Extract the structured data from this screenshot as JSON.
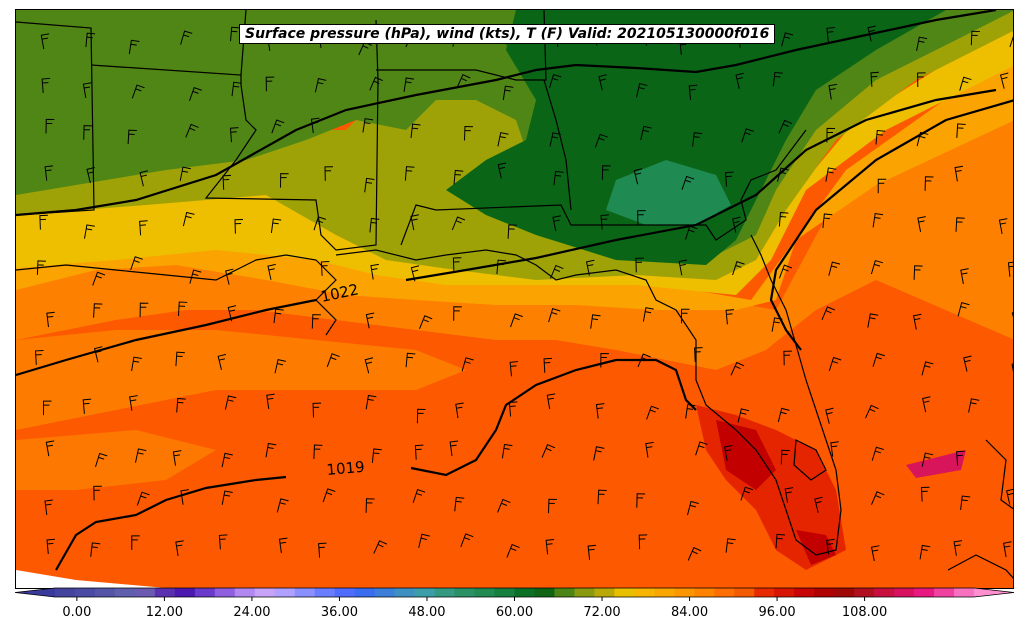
{
  "title": "Surface pressure (hPa), wind (kts), T (F) Valid: 202105130000f016",
  "isobars": [
    {
      "label": "1022"
    },
    {
      "label": "1019"
    }
  ],
  "colorbar": {
    "ticks": [
      "0.00",
      "12.00",
      "24.00",
      "36.00",
      "48.00",
      "60.00",
      "72.00",
      "84.00",
      "96.00",
      "108.00"
    ],
    "range": [
      -6,
      126
    ],
    "step": 3,
    "colors": [
      "#3a3a9c",
      "#44449e",
      "#4b4ba3",
      "#5555a8",
      "#5f5fad",
      "#6a5ab2",
      "#5a2fb0",
      "#4b18b0",
      "#6a3acb",
      "#8f5fe0",
      "#b088f0",
      "#c8a2f7",
      "#b0a0ff",
      "#8a90ff",
      "#6a7cff",
      "#4f6cff",
      "#3a6cf0",
      "#3c7fd8",
      "#3d90c0",
      "#3b9ea8",
      "#339980",
      "#2a9066",
      "#1f8a52",
      "#158040",
      "#0a7028",
      "#0d6515",
      "#4c8515",
      "#8a9a10",
      "#b8a808",
      "#e8c000",
      "#f5b500",
      "#faa600",
      "#fc9600",
      "#fe8400",
      "#ff6e00",
      "#f45a00",
      "#e82a00",
      "#d81500",
      "#c80505",
      "#b00000",
      "#a00808",
      "#b01020",
      "#c81040",
      "#d81060",
      "#e81880",
      "#f040a0",
      "#f870c0",
      "#ff90d0"
    ]
  },
  "colors": {
    "dark_green": "#0a6616",
    "green": "#4f8615",
    "olive": "#9ea207",
    "yellow": "#eebf00",
    "light_orange": "#fba300",
    "orange": "#fd8000",
    "red_orange": "#fc5900",
    "red": "#e52500",
    "dark_red": "#c20000",
    "magenta": "#d8145a"
  }
}
